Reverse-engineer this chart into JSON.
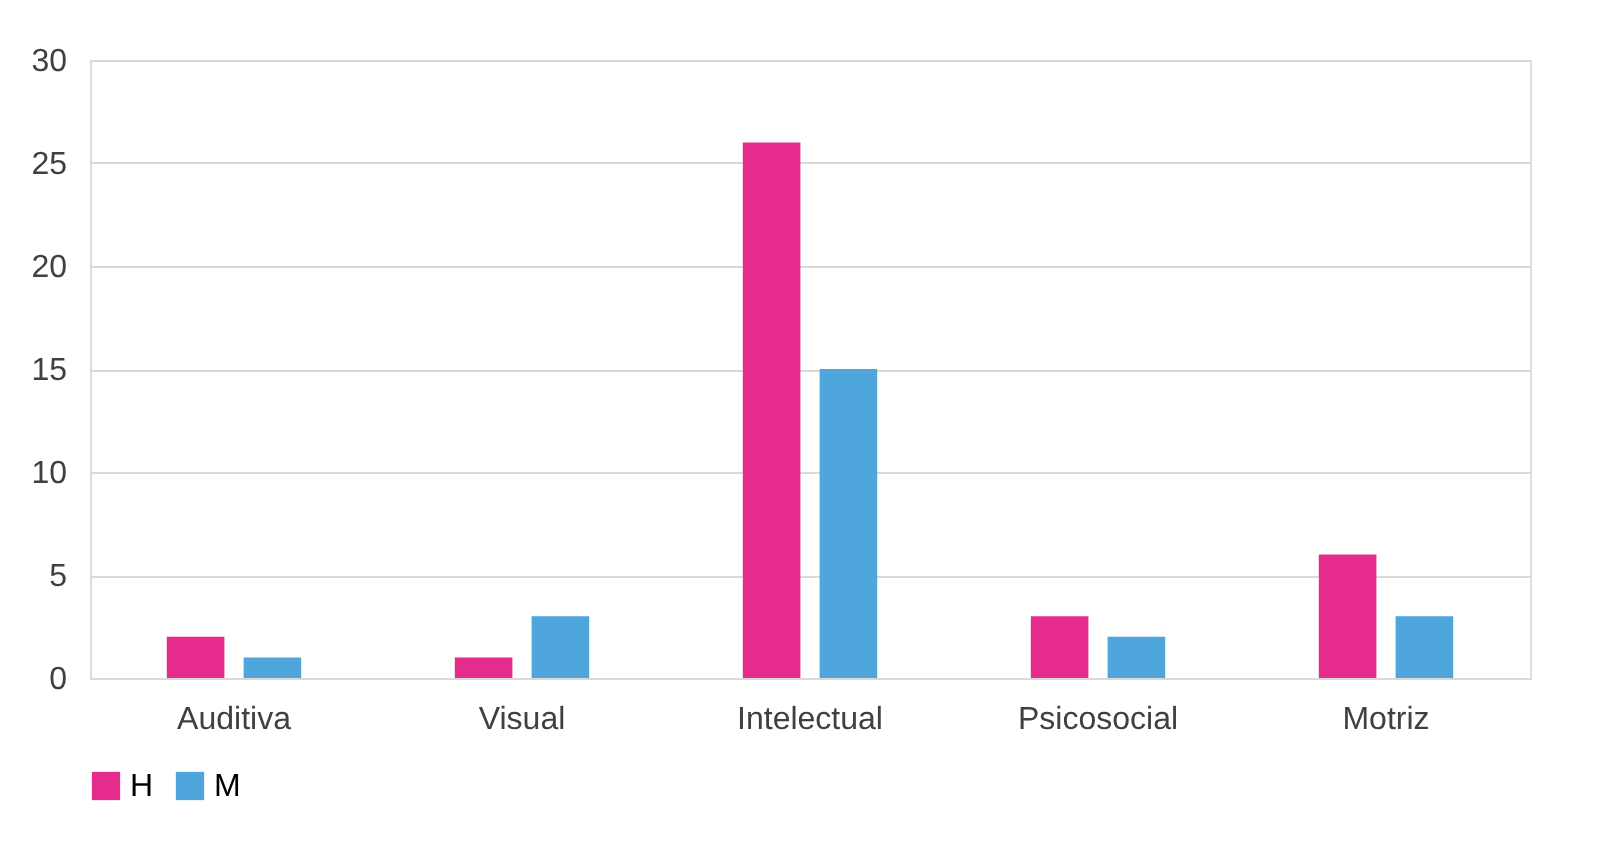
{
  "chart_data": {
    "type": "bar",
    "categories": [
      "Auditiva",
      "Visual",
      "Intelectual",
      "Psicosocial",
      "Motriz"
    ],
    "series": [
      {
        "name": "H",
        "color": "#e52b8c",
        "values": [
          2,
          1,
          26,
          3,
          6
        ]
      },
      {
        "name": "M",
        "color": "#4fa6dc",
        "values": [
          1,
          3,
          15,
          2,
          3
        ]
      }
    ],
    "ylim": [
      0,
      30
    ],
    "yticks": [
      0,
      5,
      10,
      15,
      20,
      25,
      30
    ],
    "grid": "y",
    "legend": "bottom"
  }
}
